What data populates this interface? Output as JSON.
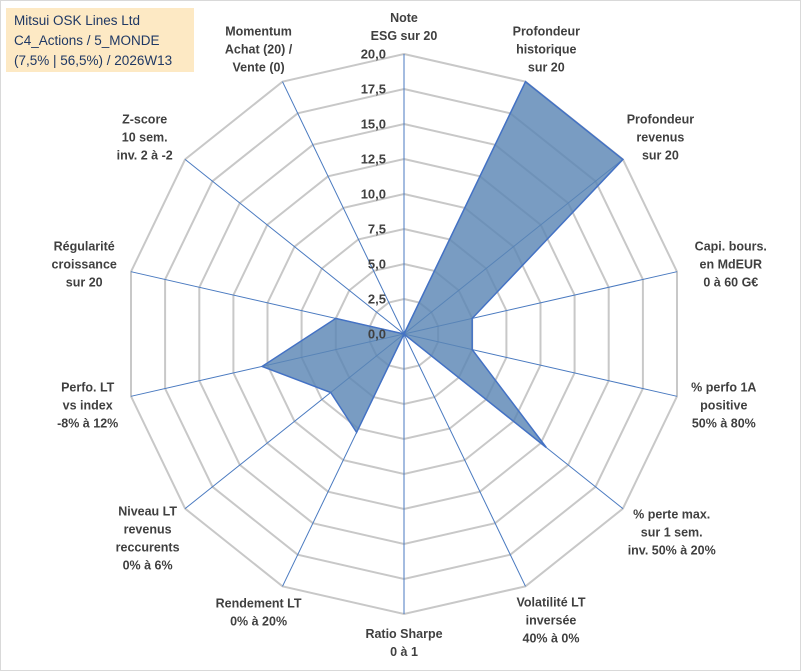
{
  "header": {
    "company": "Mitsui OSK Lines Ltd",
    "portfolio": "C4_Actions / 5_MONDE",
    "stats": "(7,5% | 56,5%) / 2026W13"
  },
  "colors": {
    "series_fill": "#5b86b5",
    "series_stroke": "#4472c4",
    "spoke": "#4a7ac0",
    "grid": "#c8c8c8",
    "title_bg": "#fde9c4",
    "title_text": "#1f3864"
  },
  "chart_data": {
    "type": "radar",
    "r_range": [
      0,
      20
    ],
    "ticks": [
      "0,0",
      "2,5",
      "5,0",
      "7,5",
      "10,0",
      "12,5",
      "15,0",
      "17,5",
      "20,0"
    ],
    "tick_values": [
      0,
      2.5,
      5,
      7.5,
      10,
      12.5,
      15,
      17.5,
      20
    ],
    "grid": true,
    "legend": "none",
    "axes": [
      {
        "label": [
          "Note",
          "ESG sur 20"
        ]
      },
      {
        "label": [
          "Profondeur",
          "historique",
          "sur 20"
        ]
      },
      {
        "label": [
          "Profondeur",
          "revenus",
          "sur 20"
        ]
      },
      {
        "label": [
          "Capi. bours.",
          "en MdEUR",
          "0 à 60 G€"
        ]
      },
      {
        "label": [
          "% perfo 1A",
          "positive",
          "50% à 80%"
        ]
      },
      {
        "label": [
          "% perte max.",
          "sur 1 sem.",
          "inv. 50% à 20%"
        ]
      },
      {
        "label": [
          "Volatilité LT",
          "inversée",
          "40% à 0%"
        ]
      },
      {
        "label": [
          "Ratio Sharpe",
          "0 à 1"
        ]
      },
      {
        "label": [
          "Rendement LT",
          "0% à 20%"
        ]
      },
      {
        "label": [
          "Niveau LT",
          "revenus",
          "reccurents",
          "0% à 6%"
        ]
      },
      {
        "label": [
          "Perfo. LT",
          "vs index",
          "-8% à 12%"
        ]
      },
      {
        "label": [
          "Régularité",
          "croissance",
          "sur 20"
        ]
      },
      {
        "label": [
          "Z-score",
          "10 sem.",
          "inv. 2 à -2"
        ]
      },
      {
        "label": [
          "Momentum",
          "Achat (20) /",
          "Vente (0)"
        ]
      }
    ],
    "series": [
      {
        "values": [
          0,
          20,
          20,
          5,
          5,
          13,
          0,
          0,
          7.8,
          6.7,
          10.4,
          5,
          0,
          0
        ]
      }
    ]
  }
}
